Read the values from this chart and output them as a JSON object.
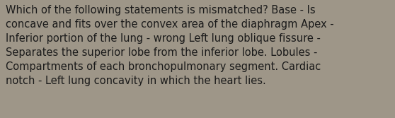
{
  "text": "Which of the following statements is mismatched? Base - Is\nconcave and fits over the convex area of the diaphragm Apex -\nInferior portion of the lung - wrong Left lung oblique fissure -\nSeparates the superior lobe from the inferior lobe. Lobules -\nCompartments of each bronchopulmonary segment. Cardiac\nnotch - Left lung concavity in which the heart lies.",
  "background_color": "#9e9688",
  "text_color": "#1a1a1a",
  "font_size": 10.5,
  "font_family": "DejaVu Sans",
  "fig_width": 5.58,
  "fig_height": 1.67,
  "dpi": 100
}
